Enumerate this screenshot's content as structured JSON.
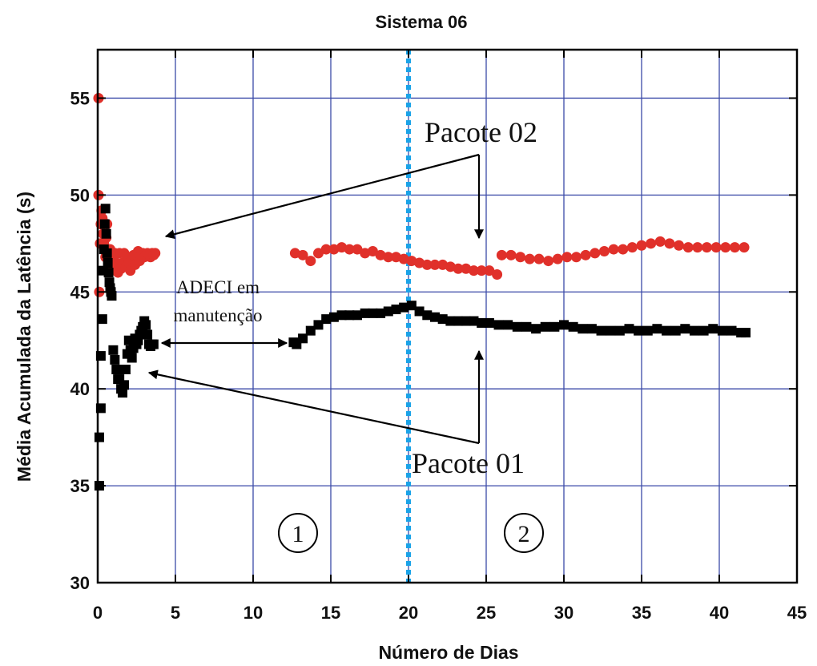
{
  "chart_data": {
    "type": "scatter",
    "title": "Sistema 06",
    "xlabel": "Número de Dias",
    "ylabel": "Média Acumulada da Latência (s)",
    "xlim": [
      0,
      45
    ],
    "ylim": [
      30,
      57.5
    ],
    "xticks": [
      "0",
      "5",
      "10",
      "15",
      "20",
      "25",
      "30",
      "35",
      "40",
      "45"
    ],
    "yticks": [
      "30",
      "35",
      "40",
      "45",
      "50",
      "55"
    ],
    "grid": true,
    "series": [
      {
        "name": "Pacote 02",
        "marker": "circle",
        "color": "#e0302a",
        "x": [
          0.05,
          0.05,
          0.1,
          0.15,
          0.2,
          0.25,
          0.3,
          0.35,
          0.4,
          0.45,
          0.5,
          0.55,
          0.6,
          0.7,
          0.8,
          0.9,
          1.0,
          1.1,
          1.2,
          1.3,
          1.4,
          1.5,
          1.6,
          1.7,
          1.8,
          1.9,
          2.0,
          2.1,
          2.2,
          2.3,
          2.4,
          2.5,
          2.6,
          2.7,
          2.8,
          2.9,
          3.0,
          3.1,
          3.2,
          3.3,
          3.4,
          3.5,
          3.6,
          3.7,
          12.7,
          13.2,
          13.7,
          14.2,
          14.7,
          15.2,
          15.7,
          16.2,
          16.7,
          17.2,
          17.7,
          18.2,
          18.7,
          19.2,
          19.7,
          20.2,
          20.7,
          21.2,
          21.7,
          22.2,
          22.7,
          23.2,
          23.7,
          24.2,
          24.7,
          25.2,
          25.7,
          26.0,
          26.6,
          27.2,
          27.8,
          28.4,
          29.0,
          29.6,
          30.2,
          30.8,
          31.4,
          32.0,
          32.6,
          33.2,
          33.8,
          34.4,
          35.0,
          35.6,
          36.2,
          36.8,
          37.4,
          38.0,
          38.6,
          39.2,
          39.8,
          40.4,
          41.0,
          41.6
        ],
        "y": [
          55,
          50,
          45.0,
          47.5,
          48.5,
          49.2,
          48.8,
          48.0,
          47.5,
          47.2,
          46.8,
          47.8,
          48.5,
          46.5,
          47.2,
          46.3,
          46.8,
          47.0,
          46.5,
          46.0,
          47.0,
          46.2,
          46.5,
          47.0,
          46.3,
          46.8,
          46.5,
          46.1,
          46.7,
          46.9,
          46.4,
          46.9,
          47.1,
          46.6,
          46.9,
          47.0,
          46.8,
          46.9,
          47.0,
          46.9,
          46.8,
          47.0,
          46.9,
          47.0,
          47.0,
          46.9,
          46.6,
          47.0,
          47.2,
          47.2,
          47.3,
          47.2,
          47.2,
          47.0,
          47.1,
          46.9,
          46.8,
          46.8,
          46.7,
          46.6,
          46.5,
          46.4,
          46.4,
          46.4,
          46.3,
          46.2,
          46.2,
          46.1,
          46.1,
          46.1,
          45.9,
          46.9,
          46.9,
          46.8,
          46.7,
          46.7,
          46.6,
          46.7,
          46.8,
          46.8,
          46.9,
          47.0,
          47.1,
          47.2,
          47.2,
          47.3,
          47.4,
          47.5,
          47.6,
          47.5,
          47.4,
          47.3,
          47.3,
          47.3,
          47.3,
          47.3,
          47.3,
          47.3
        ]
      },
      {
        "name": "Pacote 01",
        "marker": "square",
        "color": "#000000",
        "x": [
          0.1,
          0.1,
          0.2,
          0.2,
          0.3,
          0.35,
          0.4,
          0.45,
          0.5,
          0.55,
          0.6,
          0.65,
          0.7,
          0.75,
          0.8,
          0.85,
          0.9,
          1.0,
          1.1,
          1.2,
          1.3,
          1.4,
          1.5,
          1.6,
          1.7,
          1.8,
          1.9,
          2.0,
          2.1,
          2.2,
          2.3,
          2.4,
          2.5,
          2.6,
          2.7,
          2.8,
          2.9,
          3.0,
          3.1,
          3.2,
          3.3,
          3.4,
          3.5,
          3.6,
          12.6,
          12.8,
          13.2,
          13.7,
          14.2,
          14.7,
          15.2,
          15.7,
          16.2,
          16.7,
          17.2,
          17.7,
          18.2,
          18.7,
          19.2,
          19.7,
          20.2,
          20.7,
          21.2,
          21.7,
          22.2,
          22.7,
          23.2,
          23.7,
          24.2,
          24.7,
          25.2,
          25.8,
          26.4,
          27.0,
          27.6,
          28.2,
          28.8,
          29.4,
          30.0,
          30.6,
          31.2,
          31.8,
          32.4,
          33.0,
          33.6,
          34.2,
          34.8,
          35.4,
          36.0,
          36.6,
          37.2,
          37.8,
          38.4,
          39.0,
          39.6,
          40.2,
          40.8,
          41.4,
          41.7
        ],
        "y": [
          35,
          37.5,
          39.0,
          41.7,
          43.6,
          46.1,
          47.2,
          48.5,
          49.3,
          48.0,
          47.0,
          46.5,
          46.0,
          45.5,
          45.2,
          45.0,
          44.8,
          42.0,
          41.5,
          41.0,
          40.5,
          40.5,
          40.0,
          39.8,
          40.2,
          41.0,
          41.8,
          42.5,
          42.0,
          41.6,
          42.1,
          42.6,
          42.3,
          42.5,
          42.8,
          43.0,
          43.2,
          43.5,
          43.3,
          42.8,
          42.3,
          42.2,
          42.3,
          42.3,
          42.4,
          42.3,
          42.6,
          43.0,
          43.3,
          43.6,
          43.7,
          43.8,
          43.8,
          43.8,
          43.9,
          43.9,
          43.9,
          44.0,
          44.1,
          44.2,
          44.3,
          44.0,
          43.8,
          43.7,
          43.6,
          43.5,
          43.5,
          43.5,
          43.5,
          43.4,
          43.4,
          43.3,
          43.3,
          43.2,
          43.2,
          43.1,
          43.2,
          43.2,
          43.3,
          43.2,
          43.1,
          43.1,
          43.0,
          43.0,
          43.0,
          43.1,
          43.0,
          43.0,
          43.1,
          43.0,
          43.0,
          43.1,
          43.0,
          43.0,
          43.1,
          43.0,
          43.0,
          42.9,
          42.9
        ]
      }
    ],
    "vline": {
      "x": 20,
      "color": "#1aa3e8",
      "style": "dotted"
    },
    "annotations": {
      "label_pacote02": "Pacote 02",
      "label_pacote01": "Pacote 01",
      "adeci_line1": "ADECI em",
      "adeci_line2": "manutenção",
      "region1": "1",
      "region2": "2"
    }
  }
}
